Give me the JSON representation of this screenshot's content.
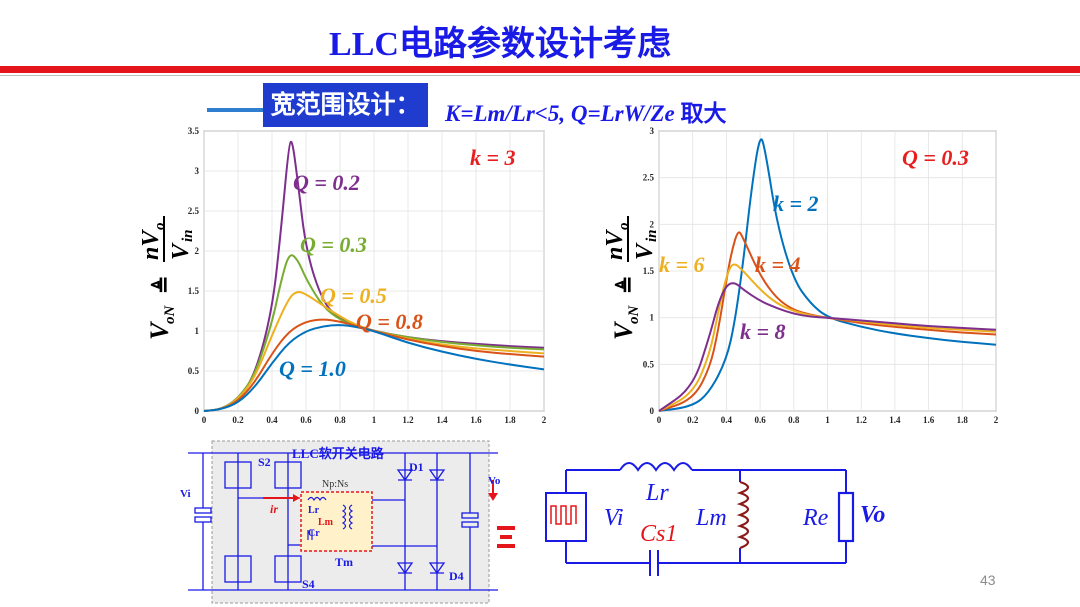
{
  "slide": {
    "title": "LLC电路参数设计考虑",
    "badge": "宽范围设计：",
    "formula_main": "K=Lm/Lr<5,  Q=LrW/Ze ",
    "formula_suffix": "取大",
    "page_number": "43"
  },
  "chart_data": [
    {
      "type": "line",
      "ylabel": "V_oN ≜ nV_o / V_in",
      "xlim": [
        0,
        2
      ],
      "ylim": [
        0,
        3.5
      ],
      "x_ticks": [
        "0",
        "0.2",
        "0.4",
        "0.6",
        "0.8",
        "1",
        "1.2",
        "1.4",
        "1.6",
        "1.8",
        "2"
      ],
      "y_ticks": [
        "0",
        "0.5",
        "1",
        "1.5",
        "2",
        "2.5",
        "3",
        "3.5"
      ],
      "annotation": "k = 3",
      "series": [
        {
          "name": "Q = 0.2",
          "color": "#7e2f8e",
          "x": [
            0,
            0.1,
            0.2,
            0.3,
            0.4,
            0.45,
            0.5,
            0.52,
            0.55,
            0.6,
            0.7,
            0.8,
            0.9,
            1,
            1.2,
            1.4,
            1.6,
            1.8,
            2
          ],
          "y": [
            0,
            0.02,
            0.15,
            0.45,
            1.25,
            2.2,
            3.35,
            3.38,
            2.9,
            2.0,
            1.35,
            1.15,
            1.07,
            1.0,
            0.92,
            0.87,
            0.84,
            0.81,
            0.79
          ]
        },
        {
          "name": "Q = 0.3",
          "color": "#77ac30",
          "x": [
            0,
            0.1,
            0.2,
            0.3,
            0.4,
            0.45,
            0.5,
            0.55,
            0.6,
            0.7,
            0.8,
            0.9,
            1,
            1.2,
            1.4,
            1.6,
            1.8,
            2
          ],
          "y": [
            0,
            0.02,
            0.15,
            0.45,
            1.1,
            1.6,
            1.98,
            1.9,
            1.65,
            1.3,
            1.14,
            1.06,
            1.0,
            0.92,
            0.86,
            0.82,
            0.79,
            0.77
          ]
        },
        {
          "name": "Q = 0.5",
          "color": "#edb120",
          "x": [
            0,
            0.1,
            0.2,
            0.3,
            0.4,
            0.5,
            0.55,
            0.6,
            0.7,
            0.8,
            0.9,
            1,
            1.2,
            1.4,
            1.6,
            1.8,
            2
          ],
          "y": [
            0,
            0.02,
            0.14,
            0.42,
            0.95,
            1.42,
            1.5,
            1.46,
            1.32,
            1.18,
            1.07,
            1.0,
            0.9,
            0.83,
            0.78,
            0.75,
            0.72
          ]
        },
        {
          "name": "Q = 0.8",
          "color": "#d95319",
          "x": [
            0,
            0.1,
            0.2,
            0.3,
            0.4,
            0.5,
            0.6,
            0.7,
            0.8,
            0.9,
            1,
            1.2,
            1.4,
            1.6,
            1.8,
            2
          ],
          "y": [
            0,
            0.02,
            0.12,
            0.36,
            0.72,
            1.0,
            1.12,
            1.15,
            1.12,
            1.06,
            1.0,
            0.89,
            0.81,
            0.75,
            0.71,
            0.68
          ]
        },
        {
          "name": "Q = 1.0",
          "color": "#0072bd",
          "x": [
            0,
            0.1,
            0.2,
            0.3,
            0.4,
            0.5,
            0.6,
            0.7,
            0.8,
            0.9,
            1,
            1.2,
            1.4,
            1.6,
            1.8,
            2
          ],
          "y": [
            0,
            0.02,
            0.1,
            0.3,
            0.6,
            0.86,
            1.0,
            1.06,
            1.08,
            1.05,
            1.0,
            0.85,
            0.74,
            0.65,
            0.58,
            0.52
          ]
        }
      ]
    },
    {
      "type": "line",
      "ylabel": "V_oN ≜ nV_o / V_in",
      "xlim": [
        0,
        2
      ],
      "ylim": [
        0,
        3
      ],
      "x_ticks": [
        "0",
        "0.2",
        "0.4",
        "0.6",
        "0.8",
        "1",
        "1.2",
        "1.4",
        "1.6",
        "1.8",
        "2"
      ],
      "y_ticks": [
        "0",
        "0.5",
        "1",
        "1.5",
        "2",
        "2.5",
        "3"
      ],
      "annotation": "Q = 0.3",
      "series": [
        {
          "name": "k = 2",
          "color": "#0072bd",
          "x": [
            0,
            0.2,
            0.3,
            0.4,
            0.45,
            0.5,
            0.55,
            0.6,
            0.63,
            0.7,
            0.8,
            0.9,
            1,
            1.2,
            1.4,
            1.6,
            1.8,
            2
          ],
          "y": [
            0,
            0.05,
            0.2,
            0.55,
            0.95,
            1.6,
            2.4,
            2.98,
            2.8,
            2.0,
            1.4,
            1.15,
            1.0,
            0.9,
            0.83,
            0.78,
            0.74,
            0.71
          ]
        },
        {
          "name": "k = 4",
          "color": "#d95319",
          "x": [
            0,
            0.2,
            0.3,
            0.35,
            0.4,
            0.43,
            0.47,
            0.5,
            0.6,
            0.7,
            0.8,
            0.9,
            1,
            1.2,
            1.4,
            1.6,
            1.8,
            2
          ],
          "y": [
            0,
            0.12,
            0.45,
            0.85,
            1.4,
            1.7,
            1.95,
            1.85,
            1.45,
            1.2,
            1.08,
            1.03,
            1.0,
            0.94,
            0.9,
            0.87,
            0.84,
            0.82
          ]
        },
        {
          "name": "k = 6",
          "color": "#edb120",
          "x": [
            0,
            0.2,
            0.3,
            0.35,
            0.4,
            0.44,
            0.5,
            0.6,
            0.7,
            0.8,
            0.9,
            1,
            1.2,
            1.4,
            1.6,
            1.8,
            2
          ],
          "y": [
            0,
            0.18,
            0.6,
            1.05,
            1.45,
            1.6,
            1.5,
            1.3,
            1.15,
            1.07,
            1.02,
            1.0,
            0.96,
            0.92,
            0.89,
            0.87,
            0.85
          ]
        },
        {
          "name": "k = 8",
          "color": "#7e2f8e",
          "x": [
            0,
            0.2,
            0.3,
            0.35,
            0.4,
            0.45,
            0.5,
            0.6,
            0.7,
            0.8,
            0.9,
            1,
            1.2,
            1.4,
            1.6,
            1.8,
            2
          ],
          "y": [
            0,
            0.25,
            0.8,
            1.15,
            1.35,
            1.38,
            1.3,
            1.18,
            1.1,
            1.04,
            1.01,
            1.0,
            0.97,
            0.94,
            0.91,
            0.89,
            0.87
          ]
        }
      ]
    }
  ],
  "circuit_left": {
    "title": "LLC软开关电路",
    "labels": {
      "s2": "S2",
      "s4": "S4",
      "d1": "D1",
      "d4": "D4",
      "vi": "Vi",
      "vo": "Vo",
      "ir": "ir",
      "npns": "Np:Ns",
      "lr": "Lr",
      "lm": "Lm",
      "cr": "Cr",
      "tm": "Tm"
    }
  },
  "circuit_right": {
    "labels": {
      "vi": "Vi",
      "lr": "Lr",
      "cs1": "Cs1",
      "lm": "Lm",
      "re": "Re",
      "vo": "Vo"
    }
  }
}
